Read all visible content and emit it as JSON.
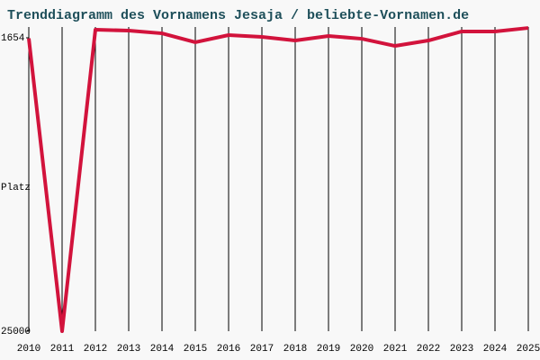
{
  "chart_data": {
    "type": "line",
    "title": "Trenddiagramm des Vornamens Jesaja / beliebte-Vornamen.de",
    "y_label": "Platz",
    "x": [
      2010,
      2011,
      2012,
      2013,
      2014,
      2015,
      2016,
      2017,
      2018,
      2019,
      2020,
      2021,
      2022,
      2023,
      2024,
      2025
    ],
    "values": [
      1700,
      25000,
      1010,
      1080,
      1300,
      2010,
      1440,
      1580,
      1870,
      1510,
      1730,
      2300,
      1870,
      1150,
      1150,
      870
    ],
    "color": "#d2133c",
    "xlim": [
      2010,
      2025
    ],
    "xticks": [
      2010,
      2011,
      2012,
      2013,
      2014,
      2015,
      2016,
      2017,
      2018,
      2019,
      2020,
      2021,
      2022,
      2023,
      2024,
      2025
    ],
    "ylim": [
      25000,
      1654
    ],
    "yticks": [
      1654,
      25000
    ],
    "grid": true
  }
}
